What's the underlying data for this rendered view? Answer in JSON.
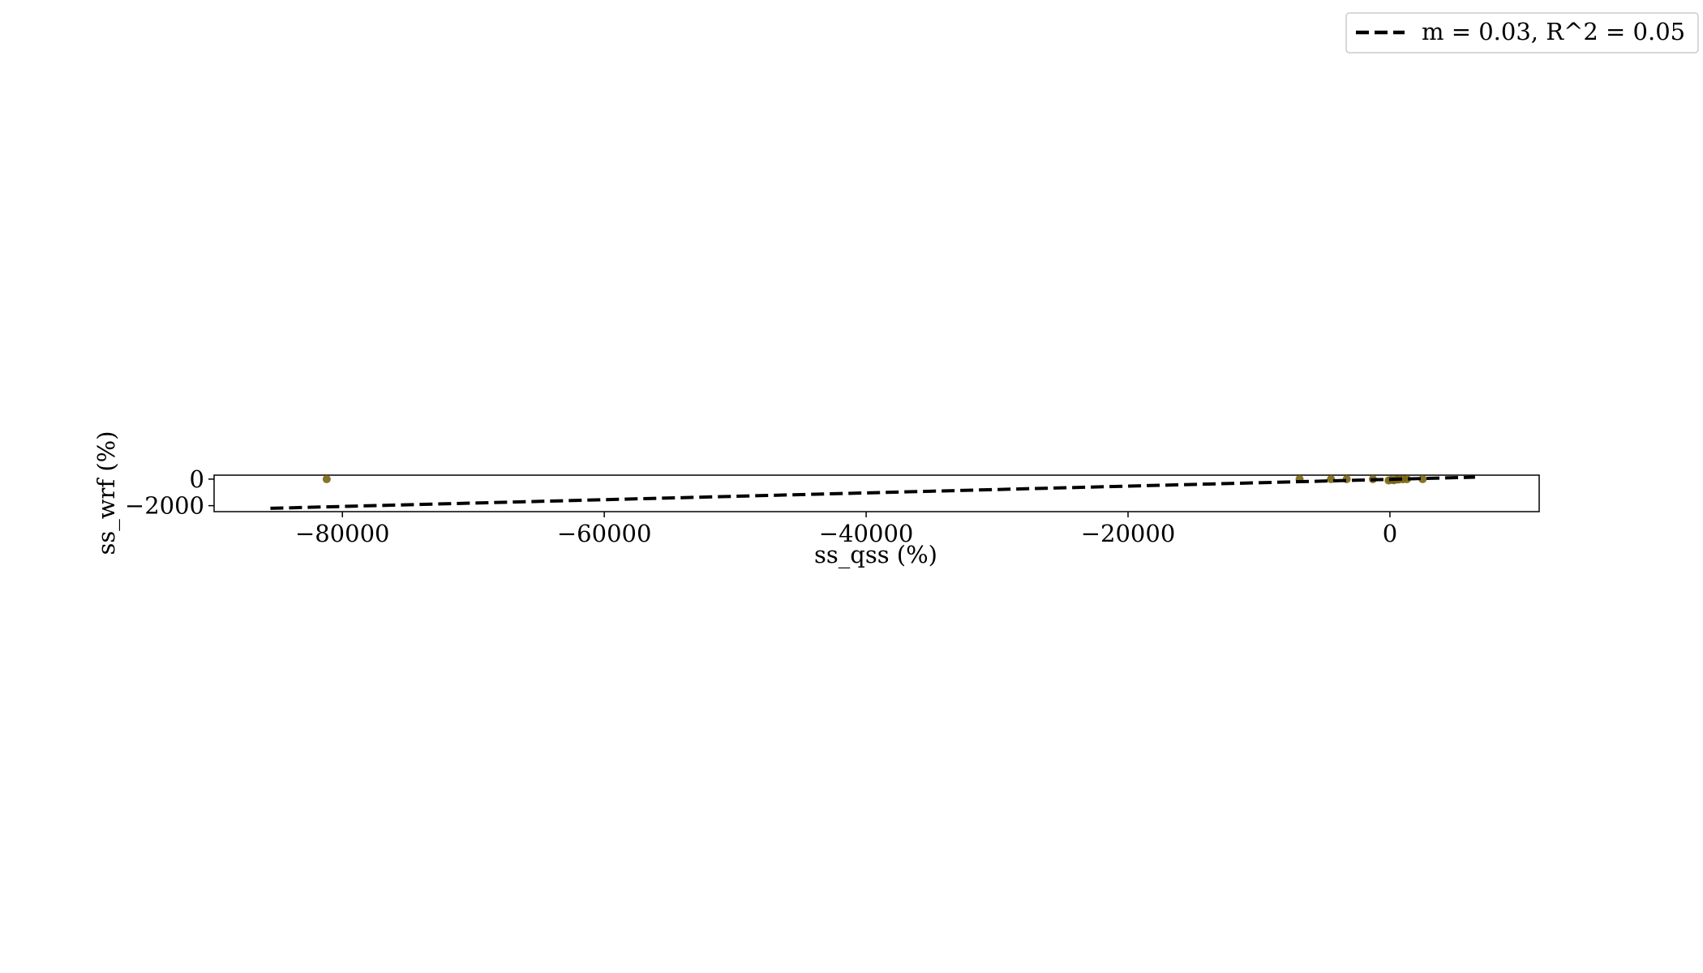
{
  "chart_data": {
    "type": "scatter",
    "xlabel": "ss_qss (%)",
    "ylabel": "ss_wrf (%)",
    "xlim": [
      -89800,
      11400
    ],
    "ylim": [
      -2450,
      300
    ],
    "x_ticks": [
      -80000,
      -60000,
      -40000,
      -20000,
      0
    ],
    "x_tick_labels": [
      "−80000",
      "−60000",
      "−40000",
      "−20000",
      "0"
    ],
    "y_ticks": [
      0,
      -2000
    ],
    "y_tick_labels": [
      "0",
      "−2000"
    ],
    "grid": false,
    "legend_position": "top-right",
    "point_color": "#7a6410",
    "line_color": "#000000",
    "points": {
      "x": [
        -81200,
        -6900,
        -4500,
        -3300,
        -1300,
        -100,
        100,
        300,
        500,
        700,
        1000,
        1300,
        2500
      ],
      "y": [
        0,
        0,
        0,
        0,
        0,
        -100,
        -50,
        -80,
        -30,
        -20,
        -10,
        -5,
        0
      ]
    },
    "fit_line": {
      "label": "m = 0.03, R^2 = 0.05",
      "style": "dashed",
      "x": [
        -85500,
        6500
      ],
      "y": [
        -2200,
        150
      ]
    }
  }
}
